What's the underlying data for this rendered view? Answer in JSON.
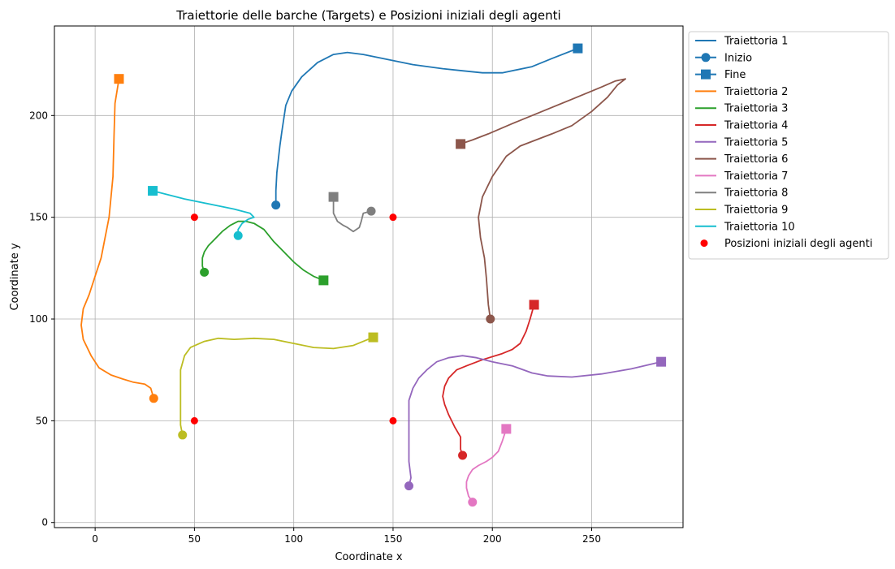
{
  "chart_data": {
    "type": "line",
    "title": "Traiettorie delle barche (Targets) e Posizioni iniziali degli agenti",
    "xlabel": "Coordinate x",
    "ylabel": "Coordinate y",
    "xlim": [
      -20.5,
      296
    ],
    "ylim": [
      -2.5,
      244
    ],
    "xticks": [
      0,
      50,
      100,
      150,
      200,
      250
    ],
    "yticks": [
      0,
      50,
      100,
      150,
      200
    ],
    "grid": true,
    "legend_position": "outside-top-right",
    "legend": {
      "trajectory_1": "Traiettoria 1",
      "start": "Inizio",
      "end": "Fine",
      "agents": "Posizioni iniziali degli agenti"
    },
    "series": [
      {
        "name": "Traiettoria 1",
        "color": "#1f77b4",
        "points": [
          [
            91,
            156
          ],
          [
            91,
            163
          ],
          [
            91.5,
            172
          ],
          [
            93,
            185
          ],
          [
            94,
            192
          ],
          [
            96,
            205
          ],
          [
            99,
            212
          ],
          [
            104,
            219
          ],
          [
            112,
            226
          ],
          [
            120,
            230
          ],
          [
            127,
            231
          ],
          [
            135,
            230
          ],
          [
            145,
            228
          ],
          [
            160,
            225
          ],
          [
            175,
            223
          ],
          [
            185,
            222
          ],
          [
            195,
            221
          ],
          [
            205,
            221
          ],
          [
            220,
            224
          ],
          [
            230,
            228
          ],
          [
            243,
            233
          ]
        ]
      },
      {
        "name": "Traiettoria 2",
        "color": "#ff7f0e",
        "points": [
          [
            29.5,
            61
          ],
          [
            28,
            66
          ],
          [
            25,
            68
          ],
          [
            19,
            69
          ],
          [
            14,
            70.5
          ],
          [
            8,
            72.5
          ],
          [
            2,
            76
          ],
          [
            -2,
            82
          ],
          [
            -6,
            90
          ],
          [
            -7,
            97
          ],
          [
            -6,
            105
          ],
          [
            -3,
            112
          ],
          [
            0,
            121
          ],
          [
            3,
            130
          ],
          [
            5,
            140
          ],
          [
            7,
            150
          ],
          [
            9,
            170
          ],
          [
            9.5,
            190
          ],
          [
            10,
            206
          ],
          [
            12,
            218
          ]
        ]
      },
      {
        "name": "Traiettoria 3",
        "color": "#2ca02c",
        "points": [
          [
            55,
            123
          ],
          [
            54,
            126
          ],
          [
            54,
            130
          ],
          [
            55,
            133
          ],
          [
            57,
            136
          ],
          [
            60,
            139
          ],
          [
            64,
            143
          ],
          [
            68,
            146
          ],
          [
            72,
            148
          ],
          [
            76,
            148
          ],
          [
            80,
            147
          ],
          [
            85,
            144
          ],
          [
            90,
            138
          ],
          [
            95,
            133
          ],
          [
            100,
            128
          ],
          [
            105,
            124
          ],
          [
            110,
            121
          ],
          [
            115,
            119
          ]
        ]
      },
      {
        "name": "Traiettoria 4",
        "color": "#d62728",
        "points": [
          [
            185,
            33
          ],
          [
            184,
            36
          ],
          [
            184,
            42
          ],
          [
            181,
            47
          ],
          [
            178,
            53
          ],
          [
            176,
            58
          ],
          [
            175,
            62
          ],
          [
            176,
            67
          ],
          [
            178,
            71
          ],
          [
            182,
            75
          ],
          [
            187,
            77
          ],
          [
            195,
            80
          ],
          [
            205,
            83
          ],
          [
            210,
            85
          ],
          [
            214,
            88
          ],
          [
            217,
            94
          ],
          [
            219,
            100
          ],
          [
            221,
            107
          ]
        ]
      },
      {
        "name": "Traiettoria 5",
        "color": "#9467bd",
        "points": [
          [
            158,
            18
          ],
          [
            159,
            22
          ],
          [
            158,
            30
          ],
          [
            158,
            40
          ],
          [
            158,
            50
          ],
          [
            158,
            60
          ],
          [
            160,
            66
          ],
          [
            163,
            71
          ],
          [
            167,
            75
          ],
          [
            172,
            79
          ],
          [
            178,
            81
          ],
          [
            185,
            82
          ],
          [
            192,
            81
          ],
          [
            200,
            79
          ],
          [
            210,
            77
          ],
          [
            220,
            73.5
          ],
          [
            228,
            72
          ],
          [
            240,
            71.5
          ],
          [
            255,
            73
          ],
          [
            270,
            75.5
          ],
          [
            285,
            79
          ]
        ]
      },
      {
        "name": "Traiettoria 6",
        "color": "#8c564b",
        "points": [
          [
            199,
            100
          ],
          [
            198,
            107
          ],
          [
            197,
            120
          ],
          [
            196,
            130
          ],
          [
            194,
            140
          ],
          [
            193,
            150
          ],
          [
            195,
            160
          ],
          [
            200,
            170
          ],
          [
            207,
            180
          ],
          [
            214,
            185
          ],
          [
            222,
            188
          ],
          [
            230,
            191
          ],
          [
            240,
            195
          ],
          [
            250,
            202
          ],
          [
            258,
            209
          ],
          [
            263,
            215
          ],
          [
            267,
            218
          ],
          [
            262,
            217
          ],
          [
            255,
            214
          ],
          [
            240,
            208
          ],
          [
            225,
            202
          ],
          [
            210,
            196
          ],
          [
            198,
            191
          ],
          [
            190,
            188
          ],
          [
            184,
            186
          ]
        ]
      },
      {
        "name": "Traiettoria 7",
        "color": "#e377c2",
        "points": [
          [
            190,
            10
          ],
          [
            188,
            13
          ],
          [
            187,
            17
          ],
          [
            187,
            20
          ],
          [
            188,
            23
          ],
          [
            190,
            26
          ],
          [
            193,
            28
          ],
          [
            197,
            30
          ],
          [
            200,
            32
          ],
          [
            203,
            35
          ],
          [
            205,
            40
          ],
          [
            207,
            46
          ]
        ]
      },
      {
        "name": "Traiettoria 8",
        "color": "#7f7f7f",
        "points": [
          [
            139,
            153
          ],
          [
            135,
            152
          ],
          [
            134,
            148
          ],
          [
            133,
            145
          ],
          [
            130,
            143
          ],
          [
            127,
            145
          ],
          [
            125,
            146
          ],
          [
            122,
            148
          ],
          [
            120,
            152
          ],
          [
            120,
            156
          ],
          [
            120,
            160
          ]
        ]
      },
      {
        "name": "Traiettoria 9",
        "color": "#bcbd22",
        "points": [
          [
            44,
            43
          ],
          [
            43,
            48
          ],
          [
            43,
            55
          ],
          [
            43,
            65
          ],
          [
            43,
            75
          ],
          [
            45,
            82
          ],
          [
            48,
            86
          ],
          [
            55,
            89
          ],
          [
            62,
            90.5
          ],
          [
            70,
            90
          ],
          [
            80,
            90.5
          ],
          [
            90,
            90
          ],
          [
            100,
            88
          ],
          [
            110,
            86
          ],
          [
            120,
            85.5
          ],
          [
            130,
            87
          ],
          [
            140,
            91
          ]
        ]
      },
      {
        "name": "Traiettoria 10",
        "color": "#17becf",
        "points": [
          [
            72,
            141
          ],
          [
            72,
            144
          ],
          [
            74,
            147
          ],
          [
            77,
            149
          ],
          [
            80,
            150
          ],
          [
            78,
            152
          ],
          [
            70,
            154
          ],
          [
            60,
            156
          ],
          [
            45,
            159
          ],
          [
            29,
            163
          ]
        ]
      }
    ],
    "agents": {
      "name": "Posizioni iniziali degli agenti",
      "color": "#ff0000",
      "points": [
        [
          50,
          150
        ],
        [
          150,
          150
        ],
        [
          50,
          50
        ],
        [
          150,
          50
        ]
      ]
    }
  }
}
